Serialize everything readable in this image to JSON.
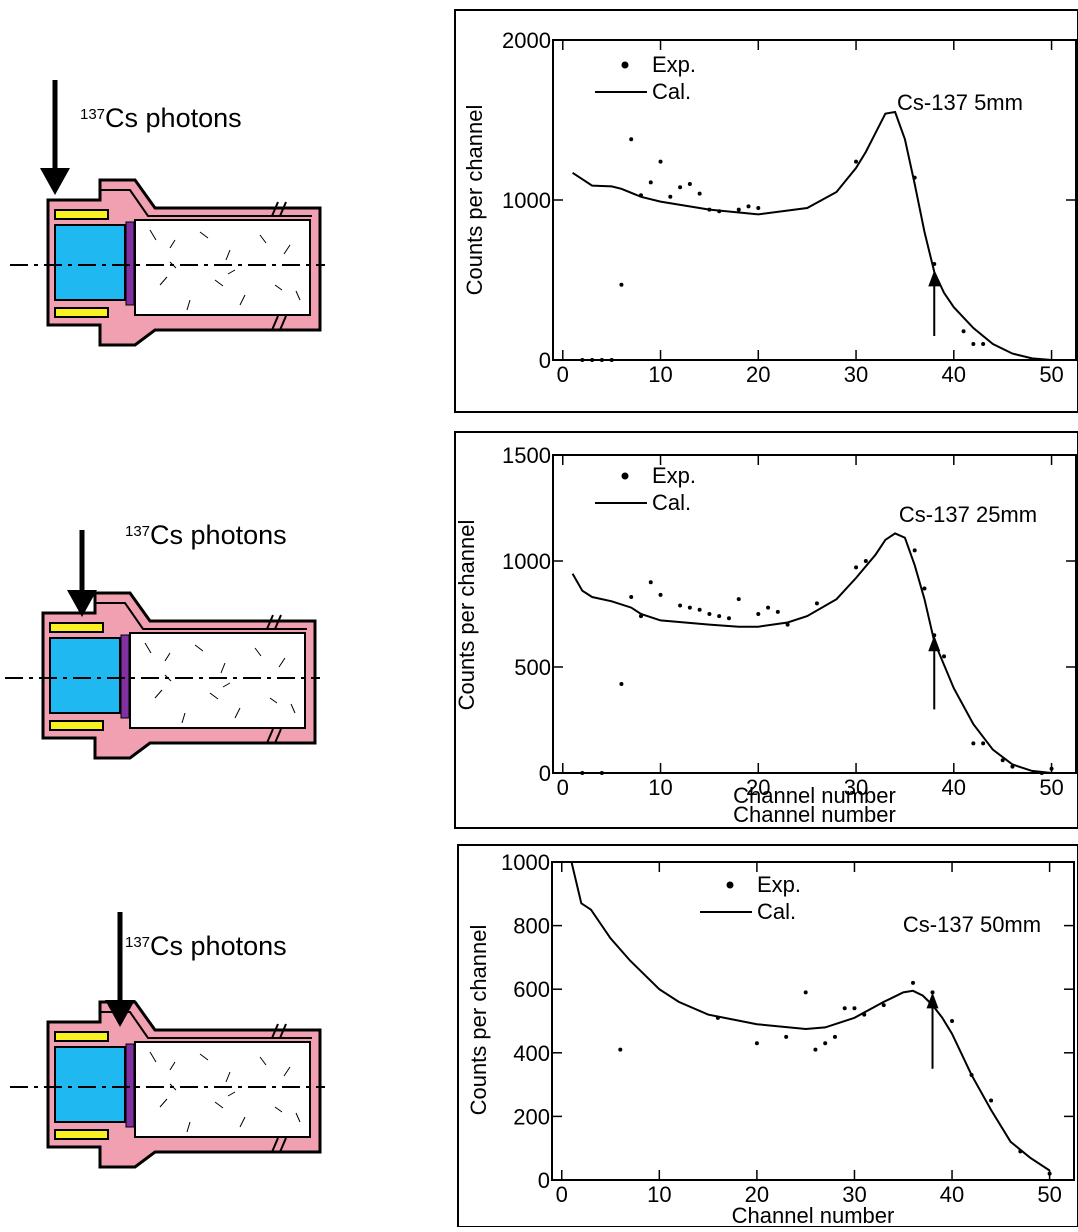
{
  "diagrams": [
    {
      "isotope": "137",
      "label": "Cs photons"
    },
    {
      "isotope": "137",
      "label": "Cs photons"
    },
    {
      "isotope": "137",
      "label": "Cs photons"
    }
  ],
  "chart_data": [
    {
      "type": "line",
      "annotation": "Cs-137 5mm",
      "xlabel": "Channel number",
      "ylabel": "Counts per channel",
      "xlim": [
        -1,
        52.5
      ],
      "ylim": [
        0,
        2000
      ],
      "xticks": [
        0,
        10,
        20,
        30,
        40,
        50
      ],
      "yticks": [
        0,
        1000,
        2000
      ],
      "grid": false,
      "arrow": {
        "x": 38,
        "y": [
          150,
          560
        ]
      },
      "series": [
        {
          "name": "Exp.",
          "mode": "markers",
          "color": "#000000",
          "x": [
            2,
            3,
            4,
            5,
            6,
            7,
            8,
            9,
            10,
            11,
            12,
            13,
            14,
            15,
            16,
            18,
            19,
            20,
            30,
            36,
            38,
            41,
            42,
            43
          ],
          "values": [
            0,
            0,
            0,
            0,
            470,
            1380,
            1030,
            1110,
            1240,
            1020,
            1080,
            1100,
            1040,
            940,
            930,
            940,
            960,
            950,
            1240,
            1140,
            600,
            180,
            100,
            100
          ]
        },
        {
          "name": "Cal.",
          "mode": "line",
          "color": "#000000",
          "x": [
            1,
            2,
            3,
            5,
            6,
            8,
            10,
            15,
            20,
            25,
            28,
            30,
            31,
            32,
            33,
            34,
            35,
            36,
            37,
            38,
            39,
            40,
            42,
            44,
            46,
            48,
            50
          ],
          "values": [
            1170,
            1130,
            1090,
            1085,
            1070,
            1020,
            990,
            940,
            910,
            950,
            1050,
            1200,
            1300,
            1420,
            1540,
            1550,
            1380,
            1100,
            800,
            550,
            420,
            330,
            200,
            100,
            40,
            10,
            0
          ]
        }
      ]
    },
    {
      "type": "line",
      "annotation": "Cs-137 25mm",
      "xlabel": "Channel number",
      "ylabel": "Counts per channel",
      "xlim": [
        -1,
        52.5
      ],
      "ylim": [
        0,
        1500
      ],
      "xticks": [
        0,
        10,
        20,
        30,
        40,
        50
      ],
      "yticks": [
        0,
        500,
        1000,
        1500
      ],
      "grid": false,
      "arrow": {
        "x": 38,
        "y": [
          300,
          650
        ]
      },
      "series": [
        {
          "name": "Exp.",
          "mode": "markers",
          "color": "#000000",
          "x": [
            2,
            4,
            6,
            7,
            8,
            9,
            10,
            12,
            13,
            14,
            15,
            16,
            17,
            18,
            20,
            21,
            22,
            23,
            26,
            30,
            31,
            36,
            37,
            38,
            39,
            42,
            43,
            45,
            46,
            49,
            50
          ],
          "values": [
            0,
            0,
            420,
            830,
            740,
            900,
            840,
            790,
            780,
            770,
            750,
            740,
            730,
            820,
            750,
            780,
            760,
            700,
            800,
            970,
            1000,
            1050,
            870,
            650,
            550,
            140,
            140,
            60,
            30,
            0,
            20
          ]
        },
        {
          "name": "Cal.",
          "mode": "line",
          "color": "#000000",
          "x": [
            1,
            2,
            3,
            5,
            7,
            8,
            10,
            15,
            18,
            20,
            23,
            25,
            28,
            30,
            32,
            33,
            34,
            35,
            36,
            37,
            38,
            40,
            42,
            44,
            46,
            48,
            50
          ],
          "values": [
            940,
            860,
            830,
            810,
            780,
            750,
            720,
            700,
            690,
            690,
            710,
            740,
            820,
            920,
            1030,
            1100,
            1130,
            1110,
            980,
            820,
            620,
            400,
            230,
            110,
            40,
            10,
            0
          ]
        }
      ]
    },
    {
      "type": "line",
      "annotation": "Cs-137 50mm",
      "xlabel": "Channel number",
      "ylabel": "Counts per channel",
      "xlim": [
        -1,
        52.5
      ],
      "ylim": [
        0,
        1000
      ],
      "xticks": [
        0,
        10,
        20,
        30,
        40,
        50
      ],
      "yticks": [
        0,
        200,
        400,
        600,
        800,
        1000
      ],
      "grid": false,
      "arrow": {
        "x": 38,
        "y": [
          350,
          590
        ]
      },
      "series": [
        {
          "name": "Exp.",
          "mode": "markers",
          "color": "#000000",
          "x": [
            6,
            16,
            20,
            23,
            25,
            26,
            27,
            28,
            29,
            30,
            31,
            33,
            36,
            38,
            40,
            42,
            44,
            47,
            50
          ],
          "values": [
            410,
            510,
            430,
            450,
            590,
            410,
            430,
            450,
            540,
            540,
            520,
            550,
            620,
            590,
            500,
            330,
            250,
            90,
            20
          ]
        },
        {
          "name": "Cal.",
          "mode": "line",
          "color": "#000000",
          "x": [
            1,
            2,
            3,
            5,
            7,
            10,
            12,
            15,
            20,
            25,
            27,
            30,
            33,
            35,
            36,
            37,
            38,
            39,
            40,
            42,
            44,
            46,
            48,
            50
          ],
          "values": [
            1000,
            870,
            850,
            760,
            690,
            600,
            560,
            520,
            490,
            475,
            480,
            510,
            560,
            590,
            595,
            580,
            550,
            510,
            460,
            330,
            220,
            120,
            70,
            30
          ]
        }
      ]
    }
  ]
}
